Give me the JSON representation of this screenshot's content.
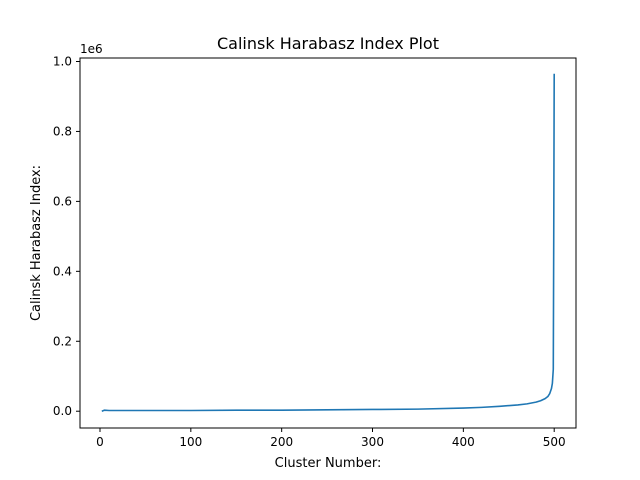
{
  "chart_data": {
    "type": "line",
    "title": "Calinsk Harabasz Index Plot",
    "xlabel": "Cluster Number:",
    "ylabel": "Calinsk Harabasz Index:",
    "y_offset_label": "1e6",
    "xlim": [
      -22,
      524
    ],
    "ylim": [
      -0.048,
      1.01
    ],
    "x_ticks": [
      0,
      100,
      200,
      300,
      400,
      500
    ],
    "x_tick_labels": [
      "0",
      "100",
      "200",
      "300",
      "400",
      "500"
    ],
    "y_ticks": [
      0.0,
      0.2,
      0.4,
      0.6,
      0.8,
      1.0
    ],
    "y_tick_labels": [
      "0.0",
      "0.2",
      "0.4",
      "0.6",
      "0.8",
      "1.0"
    ],
    "grid": false,
    "series": [
      {
        "color": "#1f77b4",
        "x": [
          2,
          3,
          4,
          5,
          10,
          50,
          100,
          150,
          200,
          250,
          300,
          350,
          400,
          420,
          440,
          460,
          470,
          480,
          485,
          490,
          493,
          495,
          497,
          498,
          499,
          499.5,
          500
        ],
        "y": [
          0.0,
          0.001,
          0.002,
          0.003,
          0.002,
          0.002,
          0.002,
          0.003,
          0.003,
          0.004,
          0.005,
          0.006,
          0.009,
          0.011,
          0.014,
          0.018,
          0.021,
          0.026,
          0.03,
          0.036,
          0.042,
          0.05,
          0.065,
          0.08,
          0.12,
          0.5,
          0.965
        ]
      }
    ]
  }
}
